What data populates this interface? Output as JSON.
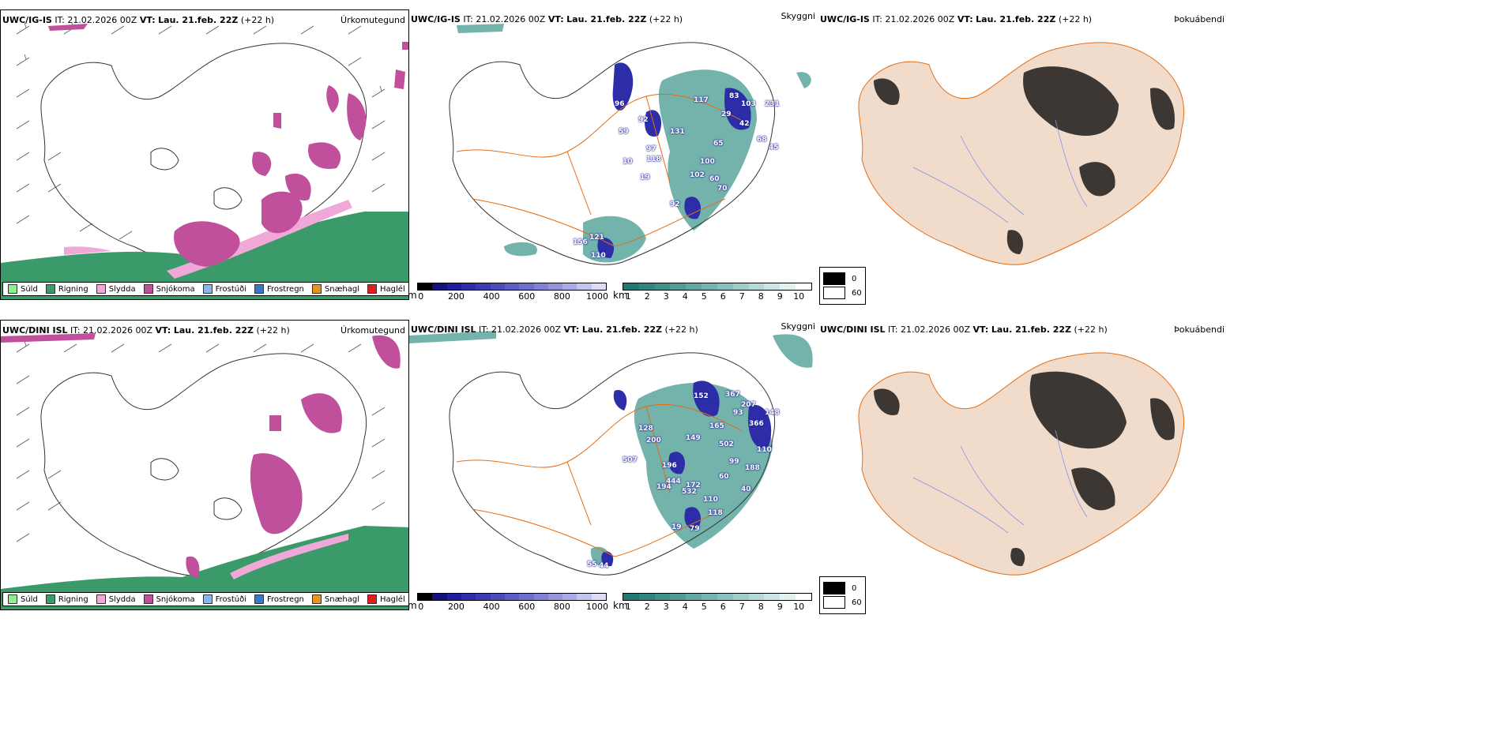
{
  "colors": {
    "drizzle": "#90ee90",
    "rain": "#3a9a6a",
    "sleet": "#f0a8d8",
    "snow": "#c0509c",
    "freezing_drizzle": "#87b8e8",
    "freezing_rain": "#3a78c8",
    "graupel": "#e8941e",
    "hail": "#e02020",
    "land_fog": "#f1dccb",
    "coast": "#333333",
    "road": "#e56d14",
    "river": "#7f95e8"
  },
  "icons": {
    "barb": "wind-barb-icon",
    "airport": "airport-icon"
  },
  "panels": [
    {
      "id": "top-precip",
      "model": "UWC/IG-IS",
      "it": "IT: 21.02.2026 00Z",
      "vt_label": "VT:",
      "vt": "Lau. 21.feb. 22Z",
      "lead": "(+22 h)",
      "type": "Úrkomutegund"
    },
    {
      "id": "top-cloud",
      "model": "UWC/IG-IS",
      "it": "IT: 21.02.2026 00Z",
      "vt_label": "VT:",
      "vt": "Lau. 21.feb. 22Z",
      "lead": "(+22 h)",
      "type": "Skyggni"
    },
    {
      "id": "top-fog",
      "model": "UWC/IG-IS",
      "it": "IT: 21.02.2026 00Z",
      "vt_label": "VT:",
      "vt": "Lau. 21.feb. 22Z",
      "lead": "(+22 h)",
      "type": "Þokuábendi"
    },
    {
      "id": "bot-precip",
      "model": "UWC/DINI ISL",
      "it": "IT: 21.02.2026 00Z",
      "vt_label": "VT:",
      "vt": "Lau. 21.feb. 22Z",
      "lead": "(+22 h)",
      "type": "Úrkomutegund"
    },
    {
      "id": "bot-cloud",
      "model": "UWC/DINI ISL",
      "it": "IT: 21.02.2026 00Z",
      "vt_label": "VT:",
      "vt": "Lau. 21.feb. 22Z",
      "lead": "(+22 h)",
      "type": "Skyggni"
    },
    {
      "id": "bot-fog",
      "model": "UWC/DINI ISL",
      "it": "IT: 21.02.2026 00Z",
      "vt_label": "VT:",
      "vt": "Lau. 21.feb. 22Z",
      "lead": "(+22 h)",
      "type": "Þokuábendi"
    }
  ],
  "precip_legend": [
    {
      "label": "Súld",
      "color": "#90ee90"
    },
    {
      "label": "Rigning",
      "color": "#3a9a6a"
    },
    {
      "label": "Slydda",
      "color": "#f0a8d8"
    },
    {
      "label": "Snjókoma",
      "color": "#c0509c"
    },
    {
      "label": "Frostúði",
      "color": "#87b8e8"
    },
    {
      "label": "Frostregn",
      "color": "#3a78c8"
    },
    {
      "label": "Snæhagl",
      "color": "#e8941e"
    },
    {
      "label": "Haglél",
      "color": "#e02020"
    }
  ],
  "cloud_base_bar": {
    "unit": "m",
    "ticks": [
      "0",
      "200",
      "400",
      "600",
      "800",
      "1000"
    ],
    "colors": [
      "#000000",
      "#12127a",
      "#1f1f99",
      "#2d2da8",
      "#3b3bb3",
      "#4b4bbb",
      "#5c5cc4",
      "#6e6ecc",
      "#8080d4",
      "#9595dc",
      "#abaae4",
      "#c4c4ee",
      "#dcdcf6"
    ]
  },
  "visibility_bar": {
    "unit": "km",
    "ticks": [
      "1",
      "2",
      "3",
      "4",
      "5",
      "6",
      "7",
      "8",
      "9",
      "10"
    ],
    "colors": [
      "#1f7a74",
      "#2f8680",
      "#40918c",
      "#519c98",
      "#63a8a4",
      "#77b4b0",
      "#8ac0bd",
      "#9fcdca",
      "#b4d9d7",
      "#cbe6e4",
      "#e3f2f1",
      "#ffffff"
    ]
  },
  "fog_legend": [
    {
      "label": "0",
      "color": "#000000"
    },
    {
      "label": "60",
      "color": "#ffffff"
    }
  ],
  "cloud_labels": {
    "top": [
      "96",
      "92",
      "59",
      "97",
      "117",
      "103",
      "231",
      "131",
      "65",
      "118",
      "100",
      "60",
      "70",
      "92",
      "19",
      "10",
      "121",
      "156",
      "110",
      "83",
      "29",
      "42",
      "68",
      "45",
      "102"
    ],
    "bottom": [
      "152",
      "367",
      "207",
      "93",
      "366",
      "148",
      "128",
      "200",
      "507",
      "196",
      "149",
      "165",
      "502",
      "172",
      "444",
      "532",
      "194",
      "110",
      "118",
      "19",
      "79",
      "44",
      "55",
      "99",
      "188",
      "110",
      "60",
      "40"
    ]
  }
}
